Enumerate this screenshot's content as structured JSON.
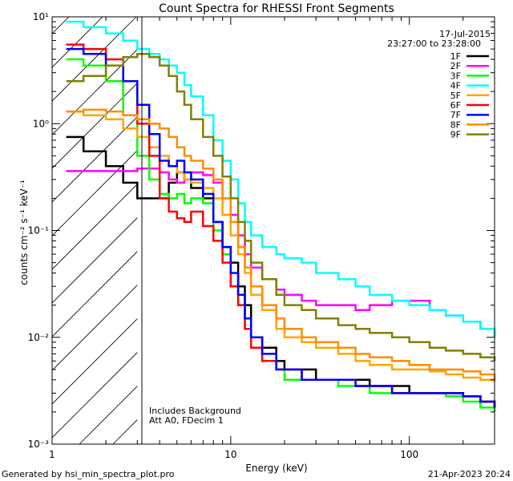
{
  "chart_data": {
    "type": "line",
    "title": "Count Spectra for RHESSI Front Segments",
    "xlabel": "Energy (keV)",
    "ylabel": "counts cm⁻² s⁻¹ keV⁻¹",
    "x_scale": "log",
    "y_scale": "log",
    "xlim": [
      1,
      300
    ],
    "ylim": [
      0.001,
      10
    ],
    "x_ticks": [
      "1",
      "10",
      "100"
    ],
    "y_ticks": [
      "10⁻³",
      "10⁻²",
      "10⁻¹",
      "10⁰",
      "10¹"
    ],
    "date": "17-Jul-2015",
    "time_range": "23:27:00 to 23:28:00",
    "hatched_below_keV": 3,
    "annotations": [
      "Includes Background",
      "Att A0, FDecim 1"
    ],
    "footer_left": "Generated by hsi_min_spectra_plot.pro",
    "footer_right": "21-Apr-2023 20:24",
    "x": [
      1.2,
      1.5,
      2,
      2.5,
      3,
      3.5,
      4,
      4.5,
      5,
      5.5,
      6,
      7,
      8,
      9,
      10,
      11,
      12,
      13,
      15,
      18,
      20,
      25,
      30,
      40,
      50,
      60,
      80,
      100,
      130,
      160,
      200,
      250,
      300
    ],
    "series": [
      {
        "name": "1F",
        "color": "#000000",
        "values": [
          0.75,
          0.55,
          0.4,
          0.28,
          0.2,
          0.2,
          0.2,
          0.28,
          0.35,
          0.3,
          0.25,
          0.2,
          0.12,
          0.07,
          0.05,
          0.03,
          0.02,
          0.01,
          0.008,
          0.006,
          0.005,
          0.005,
          0.004,
          0.004,
          0.004,
          0.0035,
          0.0035,
          0.003,
          0.003,
          0.003,
          0.0028,
          0.0025,
          0.0022
        ]
      },
      {
        "name": "2F",
        "color": "#ff00ff",
        "values": [
          0.36,
          0.36,
          0.36,
          0.36,
          0.38,
          0.38,
          0.35,
          0.3,
          0.28,
          0.3,
          0.35,
          0.33,
          0.28,
          0.2,
          0.14,
          0.09,
          0.06,
          0.045,
          0.035,
          0.028,
          0.025,
          0.022,
          0.02,
          0.02,
          0.018,
          0.02,
          0.022,
          0.022,
          0.018,
          0.016,
          0.014,
          0.012,
          0.01
        ]
      },
      {
        "name": "3F",
        "color": "#00ff00",
        "values": [
          4.0,
          3.5,
          2.5,
          1.2,
          0.5,
          0.3,
          0.22,
          0.2,
          0.22,
          0.18,
          0.2,
          0.18,
          0.1,
          0.06,
          0.03,
          0.02,
          0.012,
          0.008,
          0.006,
          0.005,
          0.004,
          0.004,
          0.004,
          0.0035,
          0.0035,
          0.003,
          0.003,
          0.003,
          0.003,
          0.0028,
          0.0025,
          0.0022,
          0.002
        ]
      },
      {
        "name": "4F",
        "color": "#00ffff",
        "values": [
          9.0,
          8.0,
          7.0,
          6.0,
          5.0,
          4.5,
          4.0,
          3.5,
          3.0,
          2.3,
          1.8,
          1.2,
          0.7,
          0.45,
          0.3,
          0.18,
          0.12,
          0.09,
          0.07,
          0.06,
          0.055,
          0.05,
          0.04,
          0.035,
          0.03,
          0.025,
          0.022,
          0.02,
          0.018,
          0.016,
          0.014,
          0.012,
          0.01
        ]
      },
      {
        "name": "5F",
        "color": "#ffa500",
        "values": [
          1.3,
          1.2,
          1.1,
          0.9,
          0.75,
          0.6,
          0.5,
          0.4,
          0.35,
          0.3,
          0.28,
          0.25,
          0.2,
          0.14,
          0.09,
          0.06,
          0.04,
          0.025,
          0.018,
          0.012,
          0.01,
          0.009,
          0.008,
          0.007,
          0.006,
          0.0055,
          0.005,
          0.005,
          0.0048,
          0.0045,
          0.0042,
          0.004,
          0.0038
        ]
      },
      {
        "name": "6F",
        "color": "#ff0000",
        "values": [
          5.5,
          5.0,
          4.0,
          2.5,
          1.0,
          0.5,
          0.2,
          0.15,
          0.13,
          0.12,
          0.15,
          0.11,
          0.08,
          0.05,
          0.03,
          0.02,
          0.012,
          0.008,
          0.006,
          0.005,
          0.005,
          0.004,
          0.004,
          0.004,
          0.0035,
          0.0035,
          0.003,
          0.003,
          0.003,
          0.003,
          0.0028,
          0.0025,
          0.0022
        ]
      },
      {
        "name": "7F",
        "color": "#0000ff",
        "values": [
          5.0,
          4.5,
          3.5,
          2.5,
          1.5,
          0.8,
          0.45,
          0.4,
          0.45,
          0.35,
          0.3,
          0.22,
          0.12,
          0.07,
          0.04,
          0.025,
          0.015,
          0.01,
          0.007,
          0.005,
          0.005,
          0.004,
          0.004,
          0.004,
          0.0035,
          0.0035,
          0.003,
          0.003,
          0.003,
          0.003,
          0.0028,
          0.0025,
          0.0022
        ]
      },
      {
        "name": "8F",
        "color": "#ff8c00",
        "values": [
          1.3,
          1.35,
          1.3,
          1.2,
          1.1,
          1.0,
          0.9,
          0.75,
          0.6,
          0.5,
          0.45,
          0.38,
          0.3,
          0.2,
          0.12,
          0.07,
          0.045,
          0.03,
          0.02,
          0.015,
          0.012,
          0.01,
          0.009,
          0.008,
          0.007,
          0.0065,
          0.006,
          0.0055,
          0.005,
          0.005,
          0.0048,
          0.0045,
          0.004
        ]
      },
      {
        "name": "9F",
        "color": "#808000",
        "values": [
          2.5,
          2.8,
          3.5,
          4.2,
          4.5,
          4.2,
          3.5,
          2.8,
          2.0,
          1.5,
          1.1,
          0.75,
          0.5,
          0.32,
          0.2,
          0.12,
          0.08,
          0.05,
          0.035,
          0.025,
          0.02,
          0.018,
          0.015,
          0.013,
          0.012,
          0.011,
          0.01,
          0.009,
          0.008,
          0.0075,
          0.007,
          0.0065,
          0.006
        ]
      }
    ]
  }
}
